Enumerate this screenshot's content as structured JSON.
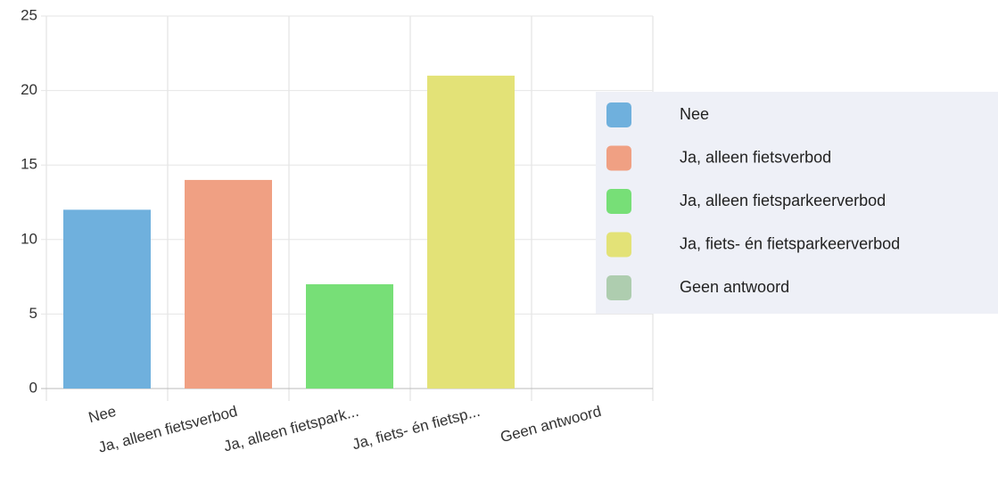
{
  "chart_data": {
    "type": "bar",
    "categories": [
      "Nee",
      "Ja, alleen fietsverbod",
      "Ja, alleen fietspark...",
      "Ja, fiets- én fietsp...",
      "Geen antwoord"
    ],
    "values": [
      12,
      14,
      7,
      21,
      0
    ],
    "colors": [
      "#6fb0dd",
      "#f0a083",
      "#77df77",
      "#e3e277",
      "#aecdaf"
    ],
    "legend": [
      "Nee",
      "Ja, alleen fietsverbod",
      "Ja, alleen fietsparkeerverbod",
      "Ja, fiets- én fietsparkeerverbod",
      "Geen antwoord"
    ],
    "ylim": [
      0,
      25
    ],
    "yticks": [
      0,
      5,
      10,
      15,
      20,
      25
    ],
    "grid": true,
    "legend_position": "right"
  }
}
